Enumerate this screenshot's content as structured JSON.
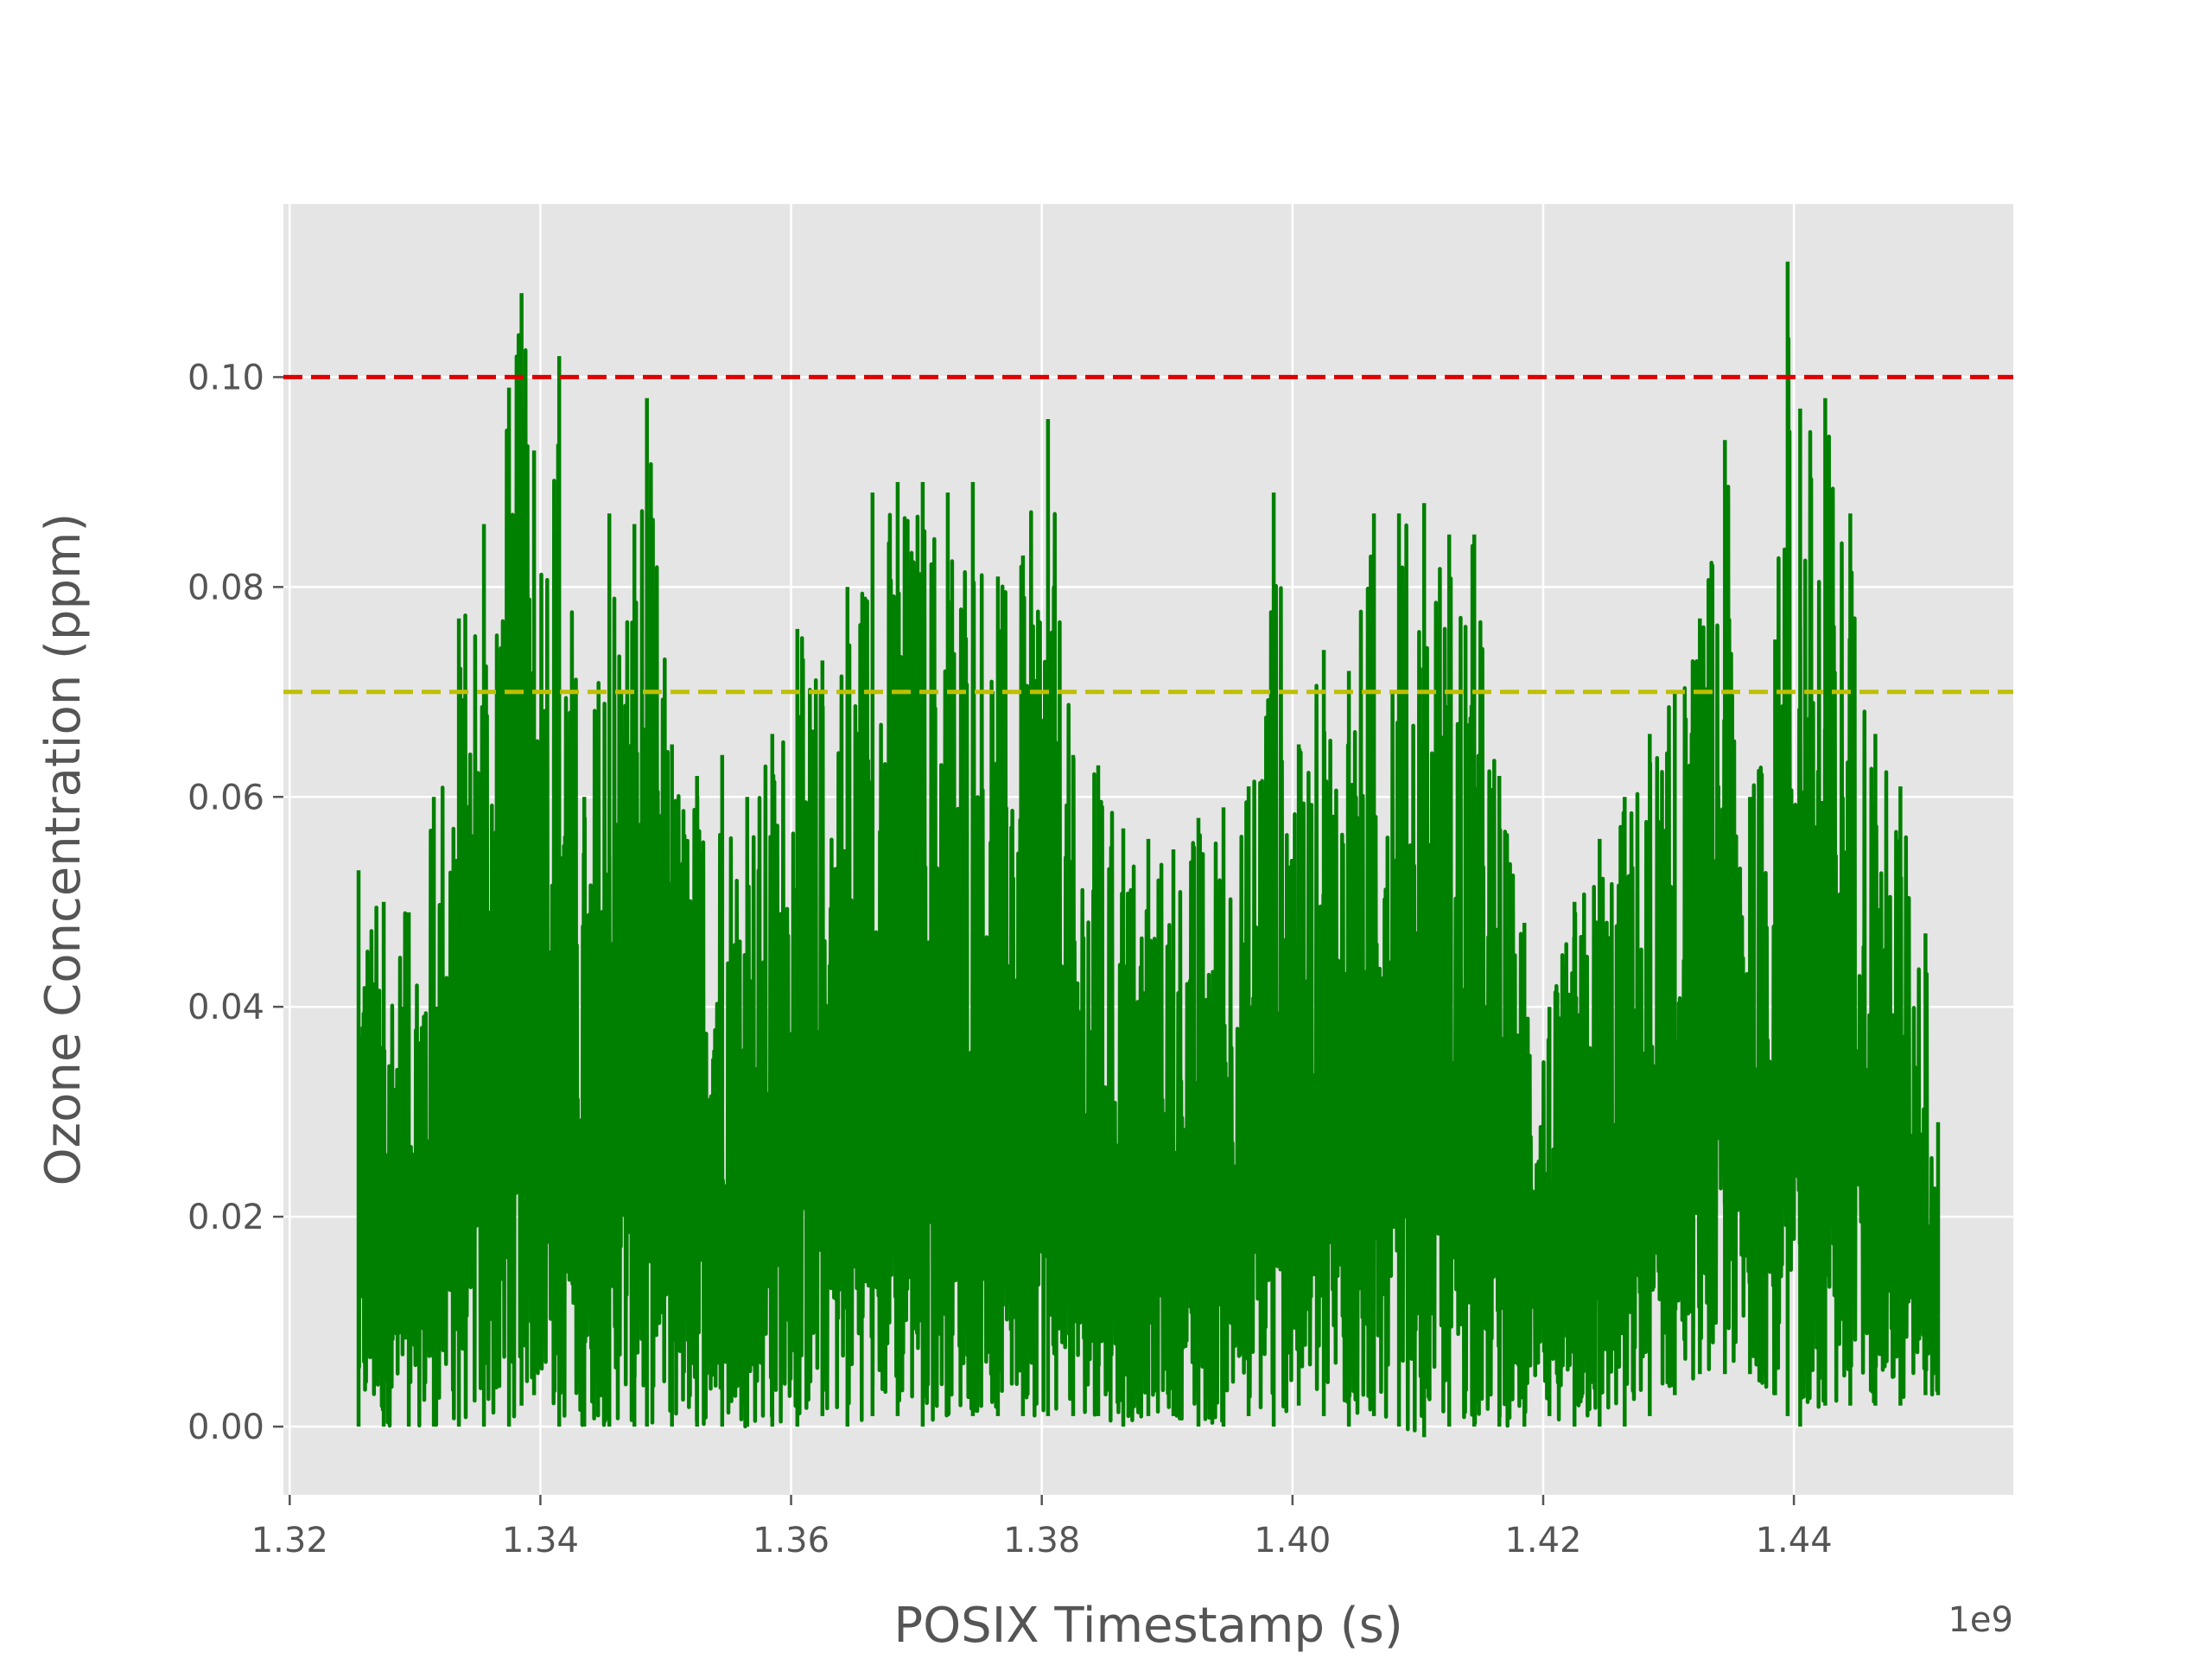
{
  "chart_data": {
    "type": "line",
    "title": "",
    "xlabel": "POSIX Timestamp (s)",
    "ylabel": "Ozone Concentration (ppm)",
    "x_offset_label": "1e9",
    "xlim": [
      1.3195,
      1.4575
    ],
    "ylim": [
      -0.0065,
      0.1165
    ],
    "x_ticks": [
      1.32,
      1.34,
      1.36,
      1.38,
      1.4,
      1.42,
      1.44
    ],
    "x_tick_labels": [
      "1.32",
      "1.34",
      "1.36",
      "1.38",
      "1.40",
      "1.42",
      "1.44"
    ],
    "y_ticks": [
      0.0,
      0.02,
      0.04,
      0.06,
      0.08,
      0.1
    ],
    "y_tick_labels": [
      "0.00",
      "0.02",
      "0.04",
      "0.06",
      "0.08",
      "0.10"
    ],
    "grid": true,
    "background": "#e5e5e5",
    "series": [
      {
        "style": "solid",
        "color": "#008000",
        "x_start": 1.3255,
        "x_end": 1.4515,
        "envelope_x": [
          1.3255,
          1.3275,
          1.3295,
          1.3315,
          1.3335,
          1.3355,
          1.3375,
          1.3385,
          1.3395,
          1.3415,
          1.3435,
          1.3455,
          1.3475,
          1.3485,
          1.3505,
          1.3525,
          1.3545,
          1.3565,
          1.3585,
          1.3605,
          1.3625,
          1.3645,
          1.3665,
          1.3685,
          1.3705,
          1.3725,
          1.3745,
          1.3765,
          1.3785,
          1.3805,
          1.3825,
          1.3845,
          1.3865,
          1.3885,
          1.3905,
          1.3925,
          1.3945,
          1.3965,
          1.3985,
          1.4005,
          1.4025,
          1.4045,
          1.4065,
          1.4085,
          1.4105,
          1.4125,
          1.4145,
          1.4165,
          1.4185,
          1.4205,
          1.4225,
          1.4245,
          1.4265,
          1.4285,
          1.4305,
          1.4325,
          1.4345,
          1.4365,
          1.4385,
          1.4395,
          1.4405,
          1.4425,
          1.4445,
          1.4465,
          1.4485,
          1.4505,
          1.4515
        ],
        "envelope_max": [
          0.053,
          0.05,
          0.049,
          0.06,
          0.077,
          0.086,
          0.099,
          0.108,
          0.093,
          0.102,
          0.06,
          0.087,
          0.086,
          0.098,
          0.065,
          0.062,
          0.064,
          0.06,
          0.066,
          0.076,
          0.073,
          0.08,
          0.089,
          0.09,
          0.09,
          0.089,
          0.09,
          0.081,
          0.083,
          0.096,
          0.064,
          0.063,
          0.057,
          0.056,
          0.055,
          0.058,
          0.059,
          0.061,
          0.089,
          0.065,
          0.074,
          0.072,
          0.087,
          0.087,
          0.088,
          0.085,
          0.085,
          0.062,
          0.048,
          0.04,
          0.05,
          0.056,
          0.06,
          0.066,
          0.07,
          0.077,
          0.094,
          0.06,
          0.075,
          0.111,
          0.097,
          0.098,
          0.087,
          0.066,
          0.061,
          0.047,
          0.029
        ],
        "envelope_min": [
          0.0,
          0.0,
          0.0,
          0.0,
          0.0,
          0.0,
          0.0,
          0.002,
          0.003,
          0.0,
          0.0,
          0.0,
          0.0,
          0.0,
          0.0,
          0.0,
          0.0,
          0.0,
          0.0,
          0.0,
          0.001,
          0.0,
          0.001,
          0.001,
          0.0,
          0.001,
          0.001,
          0.001,
          0.001,
          0.001,
          0.001,
          0.001,
          0.0,
          0.001,
          0.001,
          0.0,
          0.0,
          0.001,
          0.0,
          0.002,
          0.001,
          0.0,
          0.001,
          0.0,
          -0.001,
          0.0,
          0.0,
          0.0,
          0.0,
          0.001,
          0.0,
          0.0,
          0.0,
          0.001,
          0.003,
          0.005,
          0.005,
          0.005,
          0.003,
          0.001,
          0.0,
          0.002,
          0.002,
          0.002,
          0.002,
          0.003,
          0.003
        ]
      }
    ],
    "reference_lines": [
      {
        "y": 0.1,
        "color": "#e00000",
        "style": "dashed"
      },
      {
        "y": 0.07,
        "color": "#bfbf00",
        "style": "dashed"
      }
    ]
  }
}
